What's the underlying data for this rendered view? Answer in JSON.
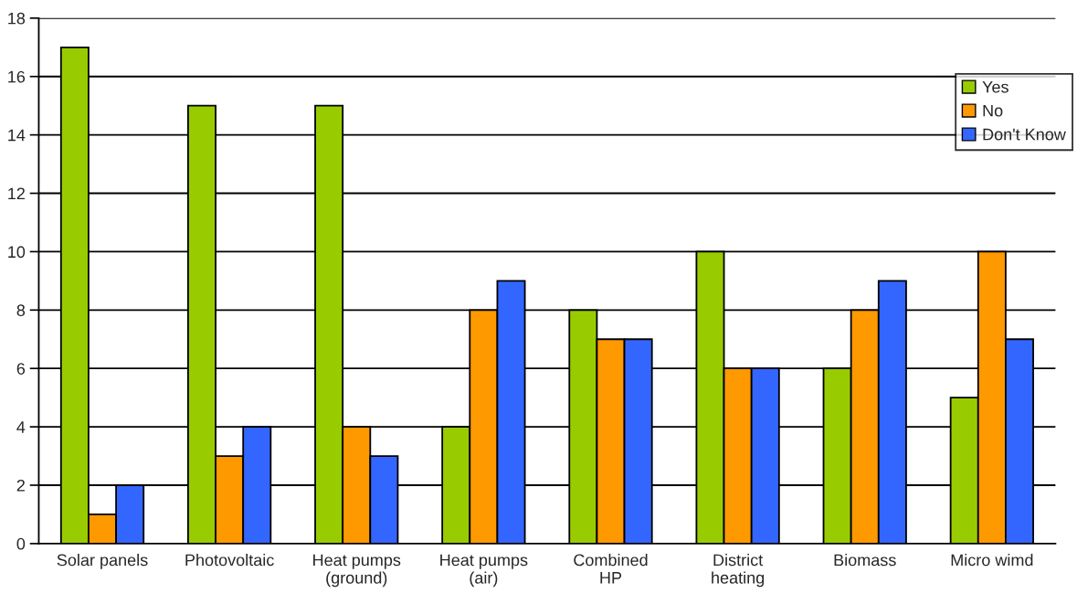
{
  "chart_data": {
    "type": "bar",
    "categories": [
      "Solar panels",
      "Photovoltaic",
      "Heat pumps\n(ground)",
      "Heat pumps\n(air)",
      "Combined\nHP",
      "District\nheating",
      "Biomass",
      "Micro wimd"
    ],
    "series": [
      {
        "name": "Yes",
        "color": "#99cc00",
        "values": [
          17,
          15,
          15,
          4,
          8,
          10,
          6,
          5
        ]
      },
      {
        "name": "No",
        "color": "#ff9900",
        "values": [
          1,
          3,
          4,
          8,
          7,
          6,
          8,
          10
        ]
      },
      {
        "name": "Don't Know",
        "color": "#3366ff",
        "values": [
          2,
          4,
          3,
          9,
          7,
          6,
          9,
          7
        ]
      }
    ],
    "ylim": [
      0,
      18
    ],
    "yticks": [
      0,
      2,
      4,
      6,
      8,
      10,
      12,
      14,
      16,
      18
    ],
    "grid": "y",
    "legend": "top right"
  }
}
